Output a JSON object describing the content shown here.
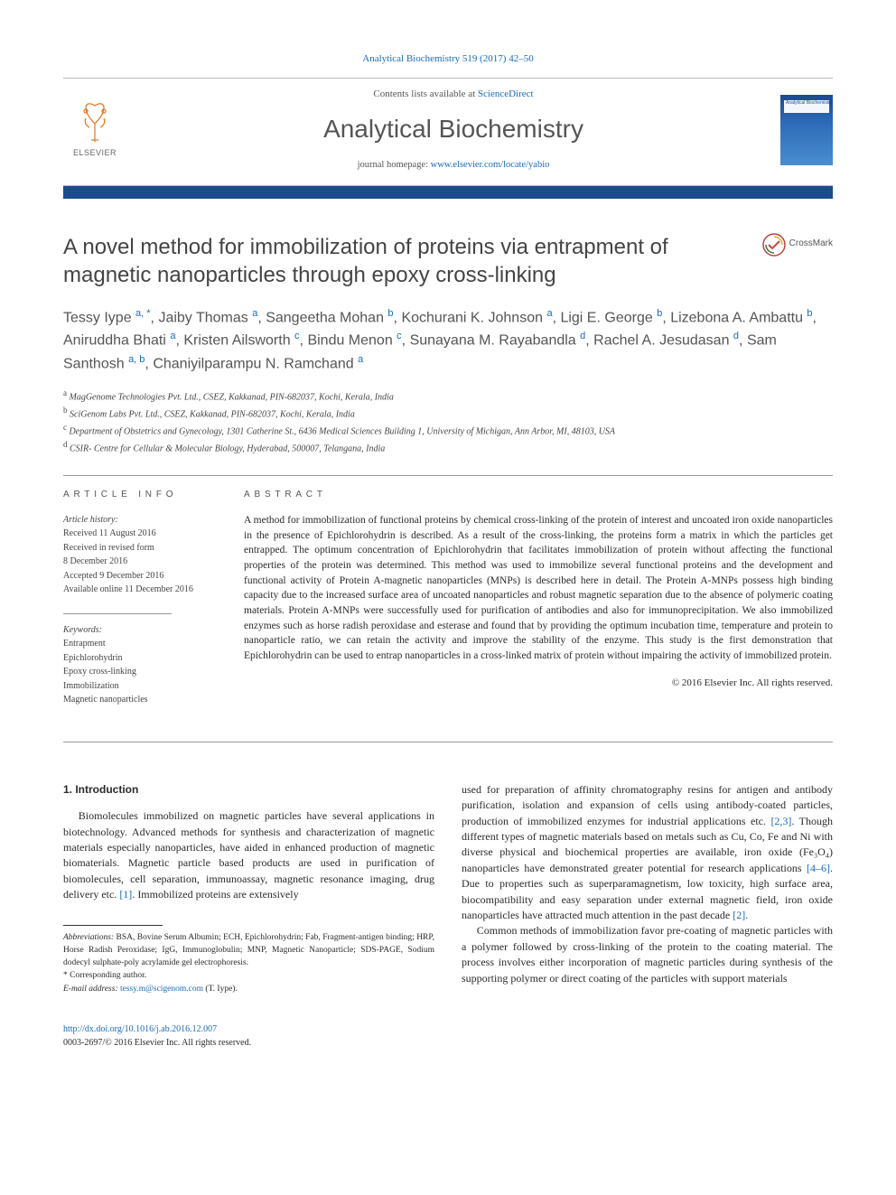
{
  "citation": "Analytical Biochemistry 519 (2017) 42–50",
  "masthead": {
    "contents_prefix": "Contents lists available at ",
    "contents_link": "ScienceDirect",
    "journal": "Analytical Biochemistry",
    "homepage_prefix": "journal homepage: ",
    "homepage_url": "www.elsevier.com/locate/yabio",
    "publisher": "ELSEVIER",
    "cover_text": "Analytical\nBiochemistry"
  },
  "crossmark_label": "CrossMark",
  "article": {
    "title": "A novel method for immobilization of proteins via entrapment of magnetic nanoparticles through epoxy cross-linking",
    "authors_html": "Tessy Iype <sup>a, *</sup>, Jaiby Thomas <sup>a</sup>, Sangeetha Mohan <sup>b</sup>, Kochurani K. Johnson <sup>a</sup>, Ligi E. George <sup>b</sup>, Lizebona A. Ambattu <sup>b</sup>, Aniruddha Bhati <sup>a</sup>, Kristen Ailsworth <sup>c</sup>, Bindu Menon <sup>c</sup>, Sunayana M. Rayabandla <sup>d</sup>, Rachel A. Jesudasan <sup>d</sup>, Sam Santhosh <sup>a, b</sup>, Chaniyilparampu N. Ramchand <sup>a</sup>",
    "affiliations": [
      "a MagGenome Technologies Pvt. Ltd., CSEZ, Kakkanad, PIN-682037, Kochi, Kerala, India",
      "b SciGenom Labs Pvt. Ltd., CSEZ, Kakkanad, PIN-682037, Kochi, Kerala, India",
      "c Department of Obstetrics and Gynecology, 1301 Catherine St., 6436 Medical Sciences Building 1, University of Michigan, Ann Arbor, MI, 48103, USA",
      "d CSIR- Centre for Cellular & Molecular Biology, Hyderabad, 500007, Telangana, India"
    ]
  },
  "info": {
    "heading_info": "ARTICLE INFO",
    "heading_abstract": "ABSTRACT",
    "history_label": "Article history:",
    "history": [
      "Received 11 August 2016",
      "Received in revised form",
      "8 December 2016",
      "Accepted 9 December 2016",
      "Available online 11 December 2016"
    ],
    "keywords_label": "Keywords:",
    "keywords": [
      "Entrapment",
      "Epichlorohydrin",
      "Epoxy cross-linking",
      "Immobilization",
      "Magnetic nanoparticles"
    ]
  },
  "abstract": "A method for immobilization of functional proteins by chemical cross-linking of the protein of interest and uncoated iron oxide nanoparticles in the presence of Epichlorohydrin is described. As a result of the cross-linking, the proteins form a matrix in which the particles get entrapped. The optimum concentration of Epichlorohydrin that facilitates immobilization of protein without affecting the functional properties of the protein was determined. This method was used to immobilize several functional proteins and the development and functional activity of Protein A-magnetic nanoparticles (MNPs) is described here in detail. The Protein A-MNPs possess high binding capacity due to the increased surface area of uncoated nanoparticles and robust magnetic separation due to the absence of polymeric coating materials. Protein A-MNPs were successfully used for purification of antibodies and also for immunoprecipitation. We also immobilized enzymes such as horse radish peroxidase and esterase and found that by providing the optimum incubation time, temperature and protein to nanoparticle ratio, we can retain the activity and improve the stability of the enzyme. This study is the first demonstration that Epichlorohydrin can be used to entrap nanoparticles in a cross-linked matrix of protein without impairing the activity of immobilized protein.",
  "copyright": "© 2016 Elsevier Inc. All rights reserved.",
  "section1_heading": "1. Introduction",
  "para1": "Biomolecules immobilized on magnetic particles have several applications in biotechnology. Advanced methods for synthesis and characterization of magnetic materials especially nanoparticles, have aided in enhanced production of magnetic biomaterials. Magnetic particle based products are used in purification of biomolecules, cell separation, immunoassay, magnetic resonance imaging, drug delivery etc. ",
  "ref1": "[1]",
  "para1b": ". Immobilized proteins are extensively",
  "para2a": "used for preparation of affinity chromatography resins for antigen and antibody purification, isolation and expansion of cells using antibody-coated particles, production of immobilized enzymes for industrial applications etc. ",
  "ref23": "[2,3]",
  "para2b": ". Though different types of magnetic materials based on metals such as Cu, Co, Fe and Ni with diverse physical and biochemical properties are available, iron oxide (Fe₃O₄) nanoparticles have demonstrated greater potential for research applications ",
  "ref46": "[4–6]",
  "para2c": ". Due to properties such as superparamagnetism, low toxicity, high surface area, biocompatibility and easy separation under external magnetic field, iron oxide nanoparticles have attracted much attention in the past decade ",
  "ref2": "[2]",
  "para2d": ".",
  "para3": "Common methods of immobilization favor pre-coating of magnetic particles with a polymer followed by cross-linking of the protein to the coating material. The process involves either incorporation of magnetic particles during synthesis of the supporting polymer or direct coating of the particles with support materials",
  "footnotes": {
    "abbrev_label": "Abbreviations:",
    "abbrev": " BSA, Bovine Serum Albumin; ECH, Epichlorohydrin; Fab, Fragment-antigen binding; HRP, Horse Radish Peroxidase; IgG, Immunoglobulin; MNP, Magnetic Nanoparticle; SDS-PAGE, Sodium dodecyl sulphate-poly acrylamide gel electrophoresis.",
    "corresponding": "* Corresponding author.",
    "email_label": "E-mail address: ",
    "email": "tessy.m@scigenom.com",
    "email_suffix": " (T. Iype)."
  },
  "doi": {
    "url": "http://dx.doi.org/10.1016/j.ab.2016.12.007",
    "line2": "0003-2697/© 2016 Elsevier Inc. All rights reserved."
  },
  "colors": {
    "link": "#1a6bb8",
    "orange": "#e9711c",
    "bar": "#1a4b8c",
    "text": "#2a2a2a",
    "grey": "#555555"
  }
}
